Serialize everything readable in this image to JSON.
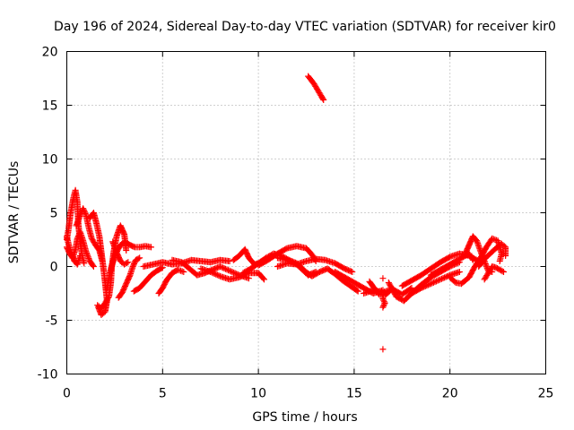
{
  "chart_data": {
    "type": "scatter",
    "title": "Day 196 of 2024, Sidereal Day-to-day VTEC variation (SDTVAR) for receiver kir0",
    "xlabel": "GPS time / hours",
    "ylabel": "SDTVAR / TECUs",
    "xlim": [
      0,
      25
    ],
    "ylim": [
      -10,
      20
    ],
    "xticks": [
      0,
      5,
      10,
      15,
      20,
      25
    ],
    "yticks": [
      -10,
      -5,
      0,
      5,
      10,
      15,
      20
    ],
    "grid": true,
    "marker": "+",
    "series": [
      {
        "name": "SDTVAR",
        "color": "#ff0000",
        "tracks": [
          [
            [
              0.0,
              2.5
            ],
            [
              0.1,
              3.6
            ],
            [
              0.2,
              5.0
            ],
            [
              0.35,
              6.4
            ],
            [
              0.45,
              7.1
            ],
            [
              0.55,
              6.0
            ],
            [
              0.6,
              4.0
            ],
            [
              0.7,
              2.2
            ],
            [
              0.8,
              1.0
            ],
            [
              0.9,
              0.3
            ]
          ],
          [
            [
              0.0,
              1.8
            ],
            [
              0.15,
              1.2
            ],
            [
              0.3,
              0.8
            ],
            [
              0.45,
              1.6
            ],
            [
              0.55,
              2.6
            ],
            [
              0.7,
              3.2
            ],
            [
              0.85,
              2.4
            ],
            [
              1.0,
              1.4
            ],
            [
              1.2,
              0.5
            ],
            [
              1.4,
              0.0
            ]
          ],
          [
            [
              0.0,
              2.8
            ],
            [
              0.1,
              2.0
            ],
            [
              0.25,
              1.2
            ],
            [
              0.4,
              0.5
            ],
            [
              0.55,
              0.2
            ],
            [
              0.7,
              1.0
            ]
          ],
          [
            [
              0.5,
              3.8
            ],
            [
              0.7,
              4.8
            ],
            [
              0.85,
              5.4
            ],
            [
              1.0,
              4.8
            ],
            [
              1.15,
              3.6
            ],
            [
              1.3,
              2.6
            ],
            [
              1.5,
              2.0
            ],
            [
              1.7,
              1.5
            ],
            [
              1.85,
              0.5
            ]
          ],
          [
            [
              1.2,
              4.5
            ],
            [
              1.4,
              5.0
            ],
            [
              1.55,
              4.0
            ],
            [
              1.7,
              2.8
            ],
            [
              1.8,
              1.4
            ],
            [
              1.9,
              0.0
            ],
            [
              2.0,
              -1.5
            ],
            [
              2.1,
              -3.2
            ],
            [
              2.0,
              -4.2
            ],
            [
              1.8,
              -4.5
            ],
            [
              1.65,
              -3.8
            ]
          ],
          [
            [
              1.6,
              -3.6
            ],
            [
              1.8,
              -3.9
            ],
            [
              2.0,
              -3.4
            ],
            [
              2.2,
              -2.8
            ],
            [
              2.3,
              -1.5
            ],
            [
              2.35,
              0.0
            ],
            [
              2.45,
              1.4
            ],
            [
              2.6,
              2.8
            ],
            [
              2.8,
              3.8
            ],
            [
              3.0,
              3.0
            ],
            [
              3.1,
              1.5
            ]
          ],
          [
            [
              2.1,
              -2.0
            ],
            [
              2.3,
              -0.2
            ],
            [
              2.55,
              1.2
            ],
            [
              2.8,
              2.0
            ],
            [
              3.05,
              2.3
            ],
            [
              3.3,
              2.0
            ],
            [
              3.55,
              1.8
            ],
            [
              3.8,
              1.8
            ],
            [
              4.1,
              1.9
            ],
            [
              4.4,
              1.8
            ]
          ],
          [
            [
              2.7,
              -2.9
            ],
            [
              2.9,
              -2.4
            ],
            [
              3.1,
              -1.6
            ],
            [
              3.3,
              -0.8
            ],
            [
              3.45,
              0.0
            ],
            [
              3.6,
              0.6
            ],
            [
              3.8,
              0.8
            ]
          ],
          [
            [
              2.4,
              2.3
            ],
            [
              2.6,
              1.3
            ],
            [
              2.8,
              0.5
            ],
            [
              3.0,
              0.2
            ],
            [
              3.2,
              0.4
            ]
          ],
          [
            [
              3.5,
              -2.3
            ],
            [
              3.8,
              -2.0
            ],
            [
              4.1,
              -1.4
            ],
            [
              4.4,
              -0.8
            ],
            [
              4.7,
              -0.4
            ],
            [
              5.0,
              -0.1
            ]
          ],
          [
            [
              4.8,
              -2.5
            ],
            [
              5.0,
              -2.0
            ],
            [
              5.2,
              -1.3
            ],
            [
              5.5,
              -0.6
            ],
            [
              5.8,
              -0.3
            ],
            [
              6.1,
              -0.5
            ]
          ],
          [
            [
              4.0,
              0.0
            ],
            [
              4.5,
              0.2
            ],
            [
              5.0,
              0.4
            ],
            [
              5.5,
              0.2
            ],
            [
              6.0,
              0.3
            ],
            [
              6.5,
              0.6
            ],
            [
              7.0,
              0.5
            ],
            [
              7.5,
              0.4
            ],
            [
              8.0,
              0.6
            ],
            [
              8.5,
              0.5
            ]
          ],
          [
            [
              5.5,
              0.6
            ],
            [
              6.0,
              0.4
            ],
            [
              6.4,
              -0.2
            ],
            [
              6.8,
              -0.8
            ],
            [
              7.2,
              -0.6
            ],
            [
              7.6,
              -0.3
            ],
            [
              8.0,
              0.0
            ],
            [
              8.5,
              -0.4
            ],
            [
              9.0,
              -0.8
            ],
            [
              9.5,
              -1.1
            ]
          ],
          [
            [
              7.0,
              -0.2
            ],
            [
              7.5,
              -0.5
            ],
            [
              8.0,
              -0.9
            ],
            [
              8.5,
              -1.2
            ],
            [
              9.0,
              -1.0
            ],
            [
              9.5,
              -0.6
            ],
            [
              10.0,
              -0.6
            ],
            [
              10.3,
              -1.2
            ]
          ],
          [
            [
              8.7,
              0.6
            ],
            [
              9.0,
              1.0
            ],
            [
              9.3,
              1.6
            ],
            [
              9.5,
              0.8
            ],
            [
              9.8,
              0.2
            ],
            [
              10.0,
              0.3
            ]
          ],
          [
            [
              10.0,
              0.1
            ],
            [
              10.5,
              0.6
            ],
            [
              11.0,
              1.2
            ],
            [
              11.5,
              1.7
            ],
            [
              12.0,
              1.9
            ],
            [
              12.5,
              1.7
            ],
            [
              12.8,
              1.1
            ],
            [
              13.0,
              0.5
            ]
          ],
          [
            [
              9.2,
              -0.6
            ],
            [
              9.6,
              -0.2
            ],
            [
              10.0,
              0.3
            ],
            [
              10.4,
              0.8
            ],
            [
              10.8,
              1.2
            ],
            [
              11.2,
              1.0
            ],
            [
              11.6,
              0.6
            ],
            [
              12.0,
              0.3
            ],
            [
              12.3,
              -0.2
            ],
            [
              12.6,
              -0.8
            ]
          ],
          [
            [
              11.0,
              0.0
            ],
            [
              11.5,
              0.3
            ],
            [
              12.0,
              0.2
            ],
            [
              12.5,
              0.5
            ],
            [
              13.0,
              0.7
            ],
            [
              13.5,
              0.6
            ],
            [
              14.0,
              0.3
            ],
            [
              14.5,
              -0.2
            ],
            [
              14.9,
              -0.5
            ]
          ],
          [
            [
              11.0,
              0.8
            ],
            [
              11.5,
              0.6
            ],
            [
              12.0,
              0.2
            ],
            [
              12.3,
              -0.3
            ],
            [
              12.6,
              -0.8
            ],
            [
              13.0,
              -0.5
            ]
          ],
          [
            [
              12.4,
              -0.4
            ],
            [
              12.8,
              -0.9
            ],
            [
              13.2,
              -0.5
            ],
            [
              13.6,
              -0.2
            ],
            [
              14.0,
              -0.7
            ],
            [
              14.4,
              -1.3
            ],
            [
              14.8,
              -1.8
            ],
            [
              15.2,
              -2.3
            ]
          ],
          [
            [
              14.0,
              -0.5
            ],
            [
              14.5,
              -1.0
            ],
            [
              15.0,
              -1.5
            ],
            [
              15.5,
              -2.0
            ],
            [
              16.0,
              -2.5
            ],
            [
              16.5,
              -2.2
            ]
          ],
          [
            [
              15.8,
              -1.4
            ],
            [
              16.0,
              -1.9
            ],
            [
              16.3,
              -2.6
            ],
            [
              16.6,
              -2.7
            ],
            [
              16.9,
              -2.2
            ]
          ],
          [
            [
              15.5,
              -2.5
            ],
            [
              16.0,
              -2.2
            ],
            [
              16.5,
              -2.4
            ],
            [
              17.0,
              -2.1
            ],
            [
              17.5,
              -2.6
            ],
            [
              18.0,
              -2.0
            ]
          ],
          [
            [
              16.5,
              -3.8
            ],
            [
              16.6,
              -3.4
            ],
            [
              16.5,
              -3.0
            ]
          ],
          [
            [
              16.8,
              -1.5
            ],
            [
              17.2,
              -2.8
            ],
            [
              17.6,
              -3.2
            ],
            [
              18.0,
              -2.5
            ],
            [
              18.5,
              -1.7
            ],
            [
              19.0,
              -1.0
            ],
            [
              19.5,
              -0.5
            ],
            [
              20.0,
              0.0
            ],
            [
              20.5,
              0.4
            ]
          ],
          [
            [
              17.5,
              -1.8
            ],
            [
              18.0,
              -1.3
            ],
            [
              18.5,
              -0.8
            ],
            [
              19.0,
              -0.2
            ],
            [
              19.5,
              0.4
            ],
            [
              20.0,
              0.9
            ],
            [
              20.5,
              1.2
            ],
            [
              21.0,
              1.0
            ],
            [
              21.5,
              0.5
            ]
          ],
          [
            [
              18.0,
              -2.5
            ],
            [
              18.5,
              -2.0
            ],
            [
              19.0,
              -1.6
            ],
            [
              19.5,
              -1.2
            ],
            [
              20.0,
              -0.8
            ],
            [
              20.5,
              -0.5
            ]
          ],
          [
            [
              19.0,
              -0.8
            ],
            [
              19.5,
              -0.3
            ],
            [
              20.0,
              0.2
            ],
            [
              20.5,
              0.7
            ],
            [
              21.0,
              1.2
            ],
            [
              21.2,
              0.6
            ]
          ],
          [
            [
              20.0,
              -1.0
            ],
            [
              20.3,
              -1.5
            ],
            [
              20.6,
              -1.6
            ],
            [
              21.0,
              -1.0
            ],
            [
              21.3,
              0.0
            ],
            [
              21.6,
              0.8
            ],
            [
              21.9,
              1.8
            ],
            [
              22.2,
              2.6
            ],
            [
              22.5,
              2.4
            ],
            [
              22.7,
              1.2
            ],
            [
              22.6,
              0.5
            ]
          ],
          [
            [
              20.8,
              1.2
            ],
            [
              21.0,
              2.0
            ],
            [
              21.2,
              2.8
            ],
            [
              21.4,
              2.4
            ],
            [
              21.6,
              1.4
            ],
            [
              21.8,
              0.5
            ],
            [
              22.0,
              -0.4
            ],
            [
              22.2,
              -0.5
            ]
          ],
          [
            [
              21.5,
              0.0
            ],
            [
              21.8,
              0.7
            ],
            [
              22.1,
              1.2
            ],
            [
              22.4,
              1.7
            ],
            [
              22.7,
              2.1
            ],
            [
              22.9,
              1.8
            ],
            [
              22.9,
              1.0
            ]
          ],
          [
            [
              21.8,
              -1.2
            ],
            [
              22.0,
              -0.6
            ],
            [
              22.2,
              0.0
            ],
            [
              22.4,
              -0.1
            ],
            [
              22.6,
              -0.3
            ],
            [
              22.8,
              -0.5
            ]
          ],
          [
            [
              12.6,
              17.7
            ],
            [
              12.9,
              17.0
            ],
            [
              13.1,
              16.4
            ],
            [
              13.3,
              15.8
            ],
            [
              13.4,
              15.5
            ]
          ]
        ],
        "isolated": [
          [
            16.5,
            -7.7
          ],
          [
            16.5,
            -1.1
          ],
          [
            16.6,
            -3.4
          ]
        ]
      }
    ]
  }
}
